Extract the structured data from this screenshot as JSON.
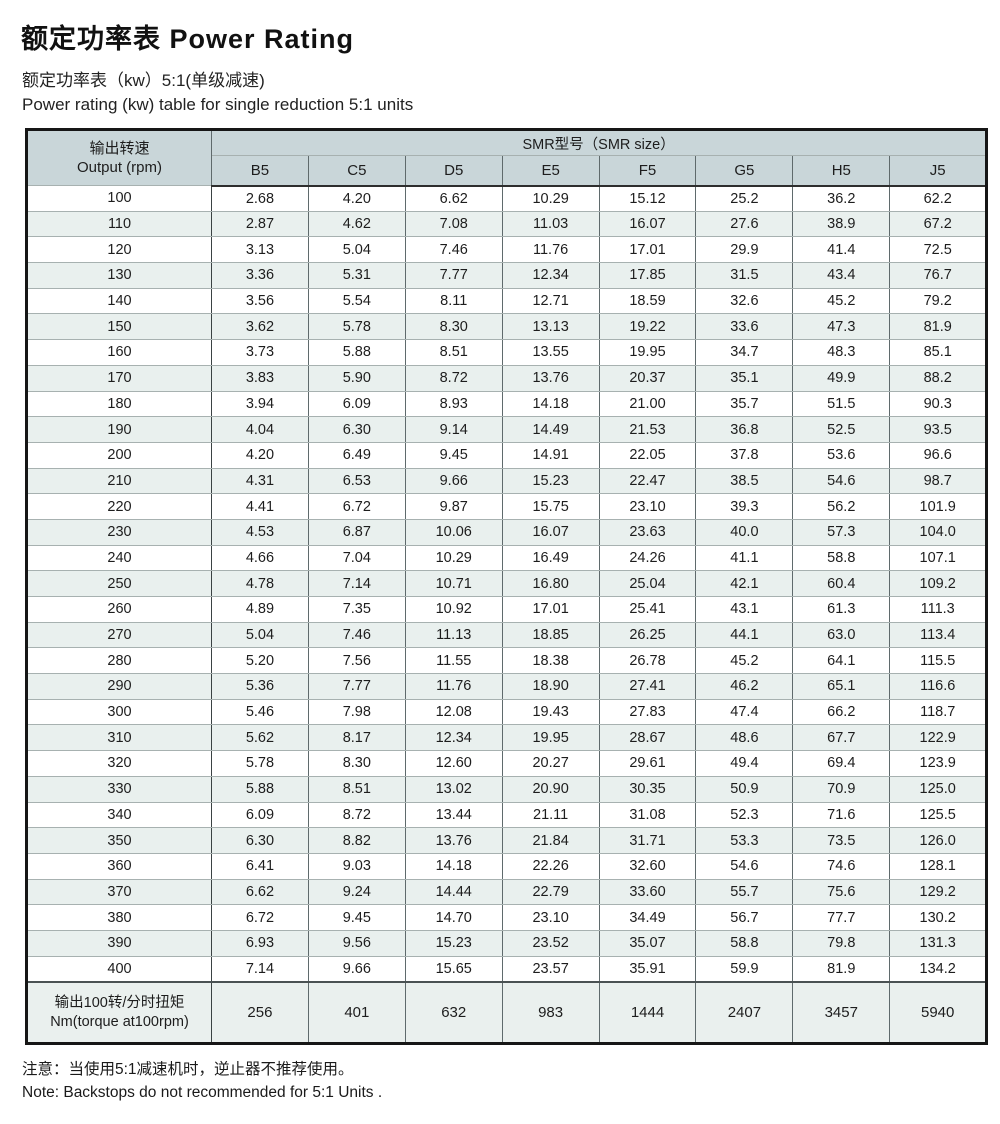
{
  "page": {
    "title": "额定功率表 Power Rating",
    "subtitle_zh": "额定功率表（kw）5:1(单级减速)",
    "subtitle_en": "Power rating (kw) table for single reduction 5:1 units",
    "note_zh": "注意：当使用5:1减速机时，逆止器不推荐使用。",
    "note_en": "Note: Backstops do not recommended for 5:1 Units ."
  },
  "colors": {
    "header_bg": "#c9d6d9",
    "alt_row_bg": "#e9f0ee",
    "torque_row_bg": "#eaf0ee",
    "border_dark": "#161616",
    "grid_v": "#5f6a6c",
    "grid_h": "#a7b1b0",
    "text": "#1d1d1d"
  },
  "table": {
    "col_header_rpm_zh": "输出转速",
    "col_header_rpm_en": "Output (rpm)",
    "group_header": "SMR型号（SMR size）",
    "size_headers": [
      "B5",
      "C5",
      "D5",
      "E5",
      "F5",
      "G5",
      "H5",
      "J5"
    ],
    "rows": [
      {
        "rpm": "100",
        "values": [
          "2.68",
          "4.20",
          "6.62",
          "10.29",
          "15.12",
          "25.2",
          "36.2",
          "62.2"
        ]
      },
      {
        "rpm": "110",
        "values": [
          "2.87",
          "4.62",
          "7.08",
          "11.03",
          "16.07",
          "27.6",
          "38.9",
          "67.2"
        ]
      },
      {
        "rpm": "120",
        "values": [
          "3.13",
          "5.04",
          "7.46",
          "11.76",
          "17.01",
          "29.9",
          "41.4",
          "72.5"
        ]
      },
      {
        "rpm": "130",
        "values": [
          "3.36",
          "5.31",
          "7.77",
          "12.34",
          "17.85",
          "31.5",
          "43.4",
          "76.7"
        ]
      },
      {
        "rpm": "140",
        "values": [
          "3.56",
          "5.54",
          "8.11",
          "12.71",
          "18.59",
          "32.6",
          "45.2",
          "79.2"
        ]
      },
      {
        "rpm": "150",
        "values": [
          "3.62",
          "5.78",
          "8.30",
          "13.13",
          "19.22",
          "33.6",
          "47.3",
          "81.9"
        ]
      },
      {
        "rpm": "160",
        "values": [
          "3.73",
          "5.88",
          "8.51",
          "13.55",
          "19.95",
          "34.7",
          "48.3",
          "85.1"
        ]
      },
      {
        "rpm": "170",
        "values": [
          "3.83",
          "5.90",
          "8.72",
          "13.76",
          "20.37",
          "35.1",
          "49.9",
          "88.2"
        ]
      },
      {
        "rpm": "180",
        "values": [
          "3.94",
          "6.09",
          "8.93",
          "14.18",
          "21.00",
          "35.7",
          "51.5",
          "90.3"
        ]
      },
      {
        "rpm": "190",
        "values": [
          "4.04",
          "6.30",
          "9.14",
          "14.49",
          "21.53",
          "36.8",
          "52.5",
          "93.5"
        ]
      },
      {
        "rpm": "200",
        "values": [
          "4.20",
          "6.49",
          "9.45",
          "14.91",
          "22.05",
          "37.8",
          "53.6",
          "96.6"
        ]
      },
      {
        "rpm": "210",
        "values": [
          "4.31",
          "6.53",
          "9.66",
          "15.23",
          "22.47",
          "38.5",
          "54.6",
          "98.7"
        ]
      },
      {
        "rpm": "220",
        "values": [
          "4.41",
          "6.72",
          "9.87",
          "15.75",
          "23.10",
          "39.3",
          "56.2",
          "101.9"
        ]
      },
      {
        "rpm": "230",
        "values": [
          "4.53",
          "6.87",
          "10.06",
          "16.07",
          "23.63",
          "40.0",
          "57.3",
          "104.0"
        ]
      },
      {
        "rpm": "240",
        "values": [
          "4.66",
          "7.04",
          "10.29",
          "16.49",
          "24.26",
          "41.1",
          "58.8",
          "107.1"
        ]
      },
      {
        "rpm": "250",
        "values": [
          "4.78",
          "7.14",
          "10.71",
          "16.80",
          "25.04",
          "42.1",
          "60.4",
          "109.2"
        ]
      },
      {
        "rpm": "260",
        "values": [
          "4.89",
          "7.35",
          "10.92",
          "17.01",
          "25.41",
          "43.1",
          "61.3",
          "111.3"
        ]
      },
      {
        "rpm": "270",
        "values": [
          "5.04",
          "7.46",
          "11.13",
          "18.85",
          "26.25",
          "44.1",
          "63.0",
          "113.4"
        ]
      },
      {
        "rpm": "280",
        "values": [
          "5.20",
          "7.56",
          "11.55",
          "18.38",
          "26.78",
          "45.2",
          "64.1",
          "115.5"
        ]
      },
      {
        "rpm": "290",
        "values": [
          "5.36",
          "7.77",
          "11.76",
          "18.90",
          "27.41",
          "46.2",
          "65.1",
          "116.6"
        ]
      },
      {
        "rpm": "300",
        "values": [
          "5.46",
          "7.98",
          "12.08",
          "19.43",
          "27.83",
          "47.4",
          "66.2",
          "118.7"
        ]
      },
      {
        "rpm": "310",
        "values": [
          "5.62",
          "8.17",
          "12.34",
          "19.95",
          "28.67",
          "48.6",
          "67.7",
          "122.9"
        ]
      },
      {
        "rpm": "320",
        "values": [
          "5.78",
          "8.30",
          "12.60",
          "20.27",
          "29.61",
          "49.4",
          "69.4",
          "123.9"
        ]
      },
      {
        "rpm": "330",
        "values": [
          "5.88",
          "8.51",
          "13.02",
          "20.90",
          "30.35",
          "50.9",
          "70.9",
          "125.0"
        ]
      },
      {
        "rpm": "340",
        "values": [
          "6.09",
          "8.72",
          "13.44",
          "21.11",
          "31.08",
          "52.3",
          "71.6",
          "125.5"
        ]
      },
      {
        "rpm": "350",
        "values": [
          "6.30",
          "8.82",
          "13.76",
          "21.84",
          "31.71",
          "53.3",
          "73.5",
          "126.0"
        ]
      },
      {
        "rpm": "360",
        "values": [
          "6.41",
          "9.03",
          "14.18",
          "22.26",
          "32.60",
          "54.6",
          "74.6",
          "128.1"
        ]
      },
      {
        "rpm": "370",
        "values": [
          "6.62",
          "9.24",
          "14.44",
          "22.79",
          "33.60",
          "55.7",
          "75.6",
          "129.2"
        ]
      },
      {
        "rpm": "380",
        "values": [
          "6.72",
          "9.45",
          "14.70",
          "23.10",
          "34.49",
          "56.7",
          "77.7",
          "130.2"
        ]
      },
      {
        "rpm": "390",
        "values": [
          "6.93",
          "9.56",
          "15.23",
          "23.52",
          "35.07",
          "58.8",
          "79.8",
          "131.3"
        ]
      },
      {
        "rpm": "400",
        "values": [
          "7.14",
          "9.66",
          "15.65",
          "23.57",
          "35.91",
          "59.9",
          "81.9",
          "134.2"
        ]
      }
    ],
    "torque_row": {
      "label_zh": "输出100转/分时扭矩",
      "label_en": "Nm(torque at100rpm)",
      "values": [
        "256",
        "401",
        "632",
        "983",
        "1444",
        "2407",
        "3457",
        "5940"
      ]
    }
  }
}
